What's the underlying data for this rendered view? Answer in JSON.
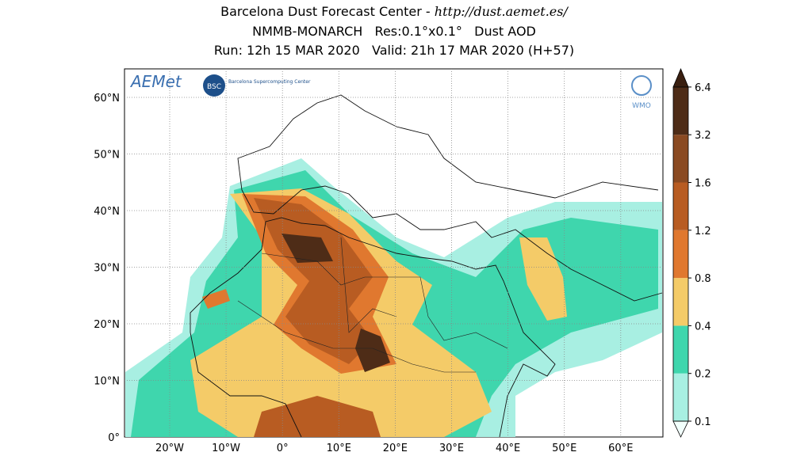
{
  "header": {
    "title_prefix": "Barcelona Dust Forecast Center - ",
    "title_url": "http://dust.aemet.es/",
    "line2": "NMMB-MONARCH   Res:0.1°x0.1°   Dust AOD",
    "line3": "Run: 12h 15 MAR 2020   Valid: 21h 17 MAR 2020 (H+57)"
  },
  "logos": {
    "aemet": "AEMet",
    "bsc": "BSC",
    "bsc_name": "Barcelona Supercomputing Center",
    "wmo": "WMO"
  },
  "map": {
    "lat_labels": [
      "60°N",
      "50°N",
      "40°N",
      "30°N",
      "20°N",
      "10°N",
      "0°"
    ],
    "lon_labels": [
      "20°W",
      "10°W",
      "0°",
      "10°E",
      "20°E",
      "30°E",
      "40°E",
      "50°E",
      "60°E"
    ]
  },
  "colorbar": {
    "levels": [
      0.1,
      0.2,
      0.4,
      0.8,
      1.2,
      1.6,
      3.2,
      6.4
    ],
    "colors": [
      "#a8efe2",
      "#3fd6ad",
      "#f4cb68",
      "#e0782f",
      "#b85c22",
      "#8a4a22",
      "#4e2c17"
    ]
  }
}
